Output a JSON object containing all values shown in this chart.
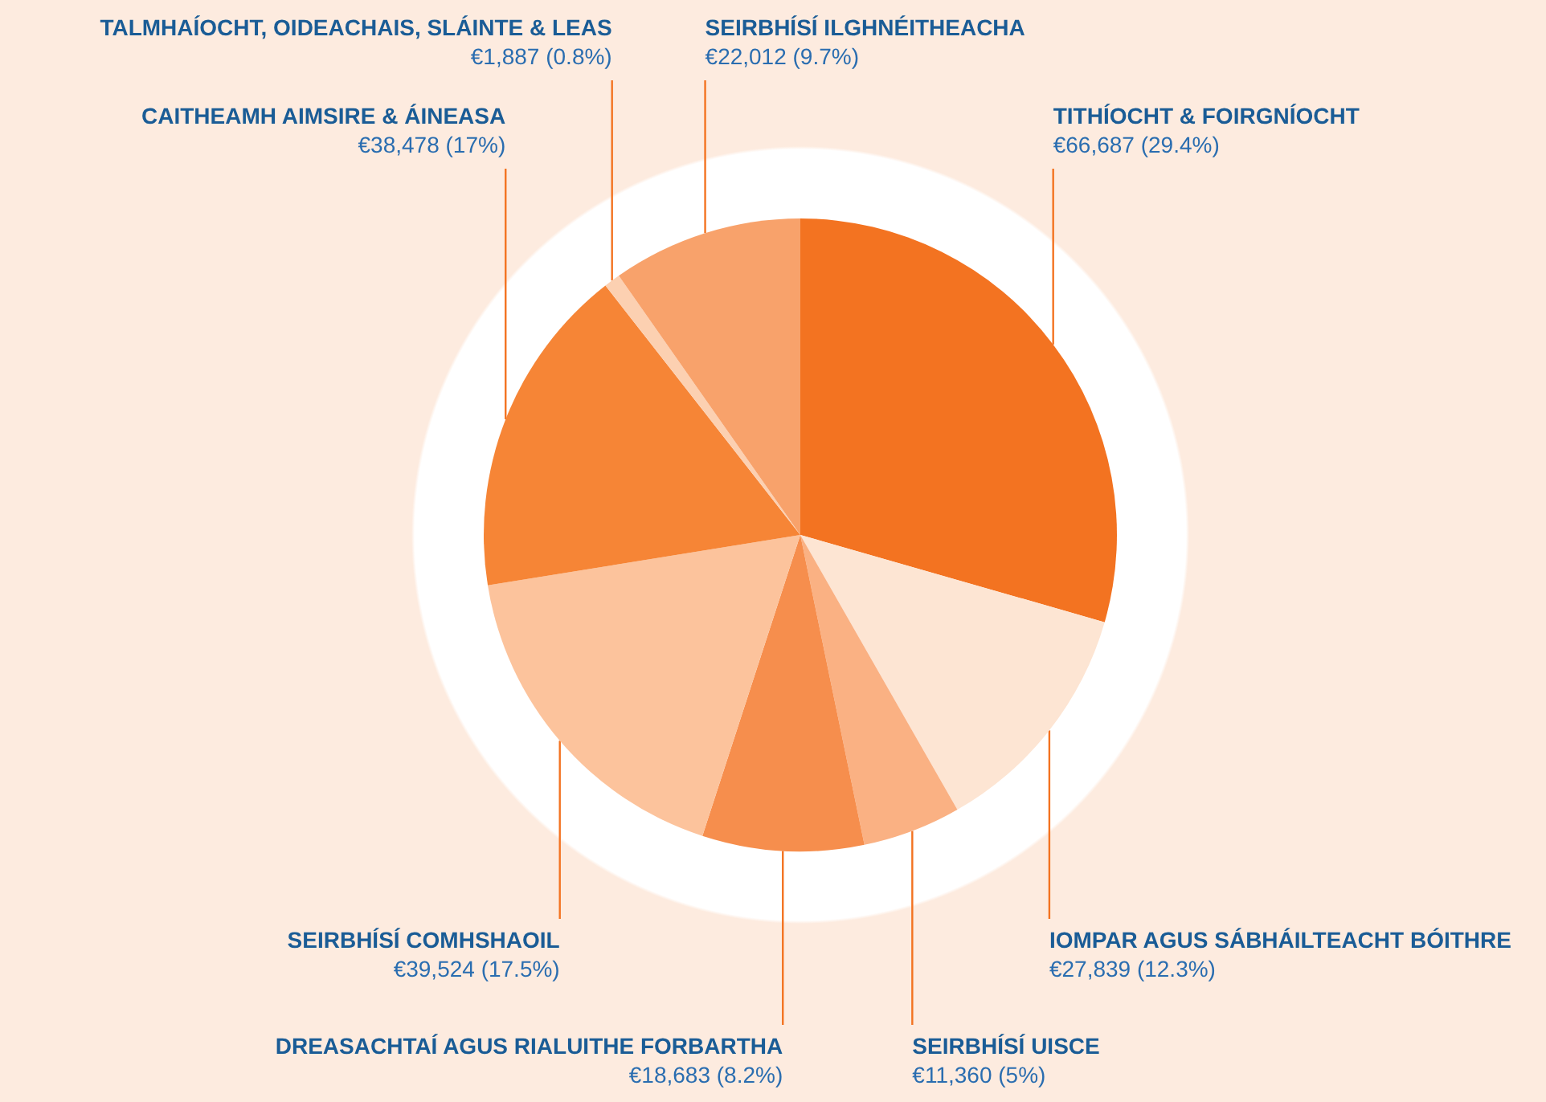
{
  "chart_data": {
    "type": "pie",
    "categories": [
      "TITHÍOCHT & FOIRGNÍOCHT",
      "IOMPAR AGUS SÁBHÁILTEACHT BÓITHRE",
      "SEIRBHÍSÍ UISCE",
      "DREASACHTAÍ AGUS RIALUITHE FORBARTHA",
      "SEIRBHÍSÍ COMHSHAOIL",
      "CAITHEAMH AIMSIRE & ÁINEASA",
      "TALMHAÍOCHT, OIDEACHAIS, SLÁINTE & LEAS",
      "SEIRBHÍSÍ ILGHNÉITHEACHA"
    ],
    "values": [
      66687,
      27839,
      11360,
      18683,
      39524,
      38478,
      1887,
      22012
    ],
    "value_labels": [
      "€66,687 (29.4%)",
      "€27,839 (12.3%)",
      "€11,360 (5%)",
      "€18,683 (8.2%)",
      "€39,524 (17.5%)",
      "€38,478 (17%)",
      "€1,887 (0.8%)",
      "€22,012 (9.7%)"
    ],
    "colors": [
      "#f37321",
      "#fde5d3",
      "#fab183",
      "#f68e4d",
      "#fcc39c",
      "#f68536",
      "#fcd0b1",
      "#f8a26b"
    ]
  }
}
